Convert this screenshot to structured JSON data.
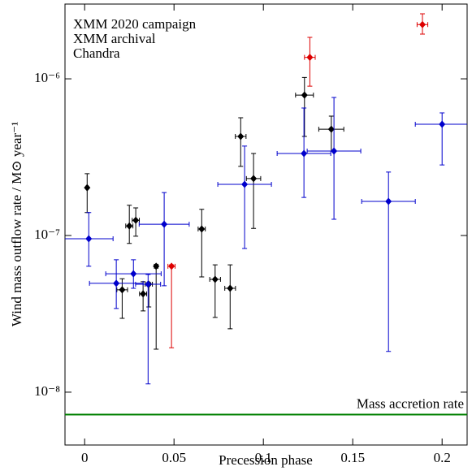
{
  "chart_data": {
    "type": "scatter",
    "xlabel": "Precession phase",
    "ylabel": "Wind mass outflow rate / M⊙ year⁻¹",
    "xlim": [
      -0.011,
      0.214
    ],
    "ylim": [
      4.6e-09,
      3e-06
    ],
    "yscale": "log",
    "xticks": [
      0,
      0.05,
      0.1,
      0.15,
      0.2
    ],
    "yticks": [
      {
        "value": 1e-08,
        "label": "10⁻⁸"
      },
      {
        "value": 1e-07,
        "label": "10⁻⁷"
      },
      {
        "value": 1e-06,
        "label": "10⁻⁶"
      }
    ],
    "legend": "upper left",
    "series": [
      {
        "name": "XMM 2020 campaign",
        "color": "#000000",
        "x": [
          0.0014,
          0.025,
          0.0286,
          0.021,
          0.0327,
          0.0359,
          0.04,
          0.0655,
          0.073,
          0.0814,
          0.0873,
          0.0945,
          0.123,
          0.138
        ],
        "values": [
          2.02e-07,
          1.15e-07,
          1.25e-07,
          4.5e-08,
          4.24e-08,
          4.89e-08,
          6.36e-08,
          1.1e-07,
          5.25e-08,
          4.6e-08,
          4.29e-07,
          2.31e-07,
          7.87e-07,
          4.77e-07
        ],
        "y_low": [
          1.4e-07,
          8.9e-08,
          9.9e-08,
          2.96e-08,
          3.3e-08,
          3.5e-08,
          1.88e-08,
          5.44e-08,
          3e-08,
          2.54e-08,
          2.76e-07,
          1.11e-07,
          4.29e-07,
          3.46e-07
        ],
        "y_high": [
          2.48e-07,
          1.56e-07,
          1.5e-07,
          5.3e-08,
          5.07e-08,
          5e-08,
          6.5e-08,
          1.47e-07,
          6.5e-08,
          6.5e-08,
          5.64e-07,
          3.34e-07,
          1.02e-06,
          5.78e-07
        ],
        "xerr": [
          0.0005,
          0.002,
          0.002,
          0.003,
          0.002,
          0.002,
          0.001,
          0.002,
          0.003,
          0.003,
          0.003,
          0.004,
          0.005,
          0.007
        ]
      },
      {
        "name": "XMM archival",
        "color": "#0000cc",
        "x": [
          0.0023,
          0.0177,
          0.0273,
          0.0355,
          0.0445,
          0.0895,
          0.1227,
          0.1395,
          0.17,
          0.2
        ],
        "values": [
          9.53e-08,
          4.95e-08,
          5.7e-08,
          4.89e-08,
          1.18e-07,
          2.12e-07,
          3.34e-07,
          3.46e-07,
          1.65e-07,
          5.13e-07
        ],
        "y_low": [
          6.36e-08,
          3.42e-08,
          4.6e-08,
          1.13e-08,
          4.78e-08,
          8.26e-08,
          1.75e-07,
          1.27e-07,
          1.82e-08,
          2.82e-07
        ],
        "y_high": [
          1.4e-07,
          7e-08,
          7e-08,
          5.64e-08,
          1.88e-07,
          3.72e-07,
          6.51e-07,
          7.6e-07,
          2.54e-07,
          6.06e-07
        ],
        "xerr": [
          0.0136,
          0.015,
          0.0155,
          0.007,
          0.014,
          0.015,
          0.015,
          0.015,
          0.015,
          0.015
        ]
      },
      {
        "name": "Chandra",
        "color": "#dd0000",
        "x": [
          0.0486,
          0.126,
          0.189
        ],
        "values": [
          6.36e-08,
          1.37e-06,
          2.22e-06
        ],
        "y_low": [
          1.92e-08,
          8.98e-07,
          1.93e-06
        ],
        "y_high": [
          6.5e-08,
          1.84e-06,
          2.6e-06
        ],
        "xerr": [
          0.002,
          0.003,
          0.003
        ]
      }
    ],
    "hline": {
      "value": 7.2e-09,
      "label": "Mass accretion rate",
      "color": "#008000"
    }
  }
}
